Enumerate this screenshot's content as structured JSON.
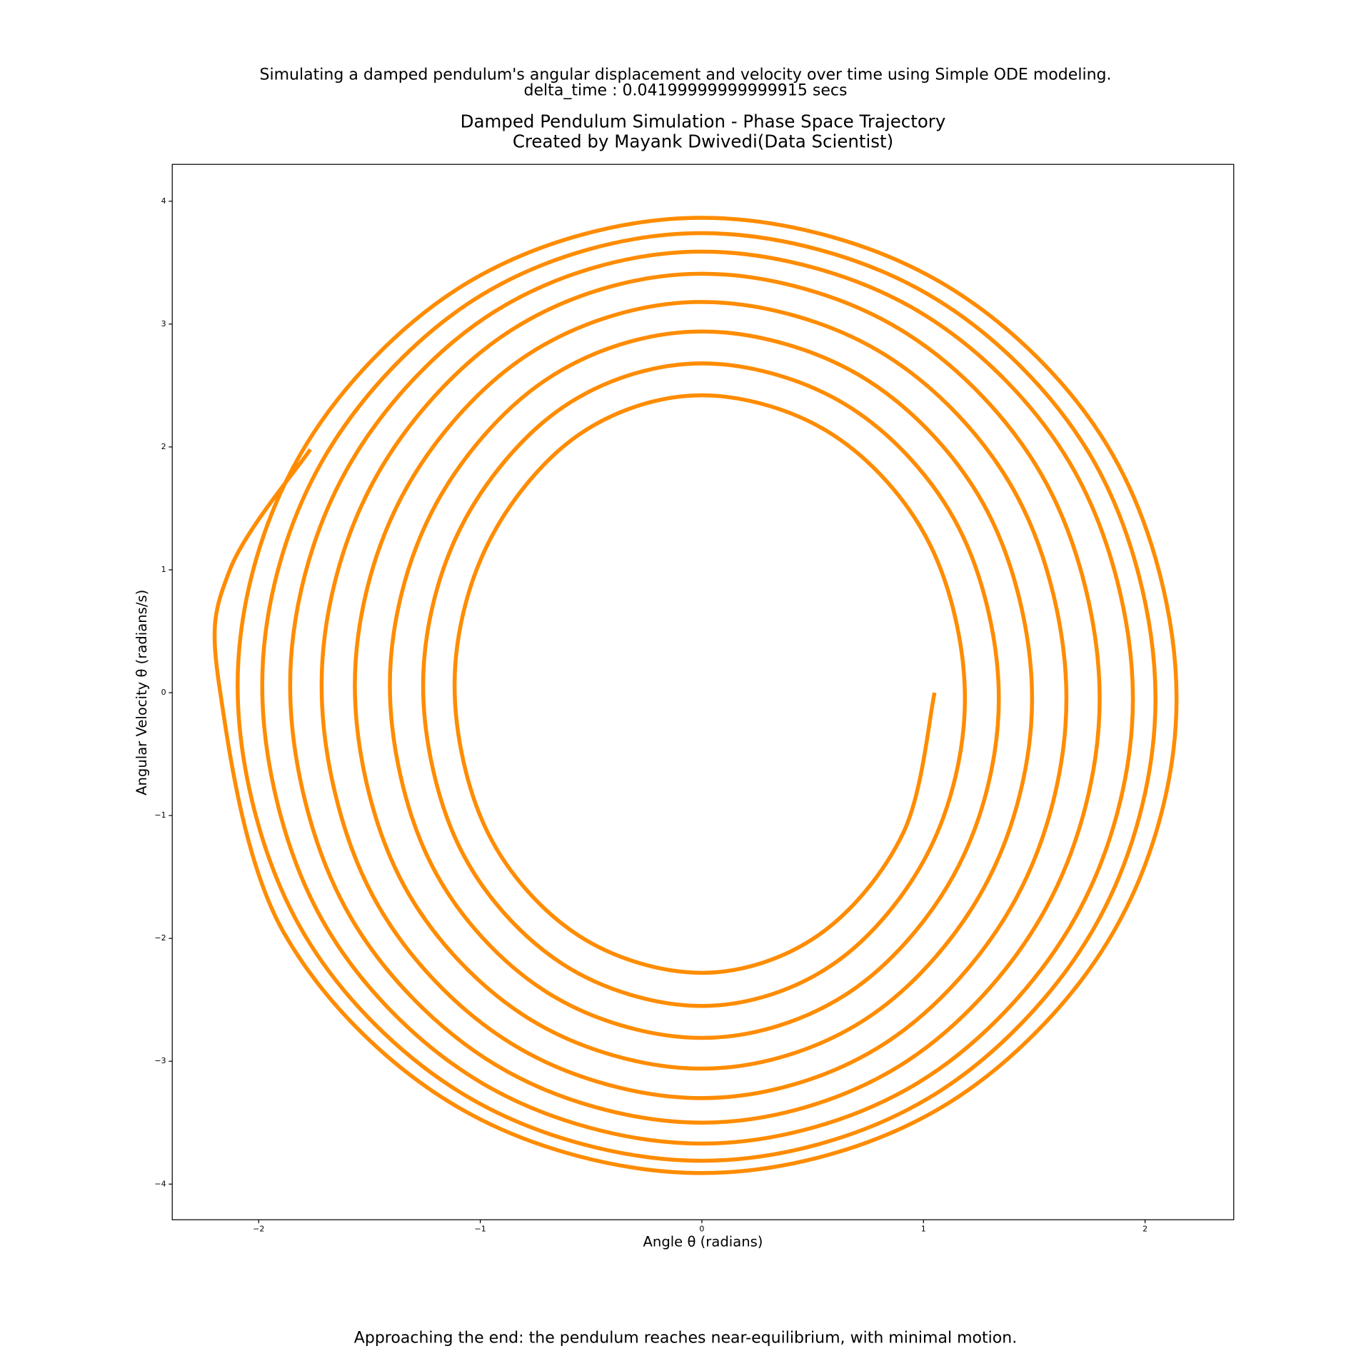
{
  "chart_data": {
    "type": "line",
    "subtitle": [
      "Simulating a damped pendulum's angular displacement and velocity over time using Simple ODE modeling.",
      "delta_time : 0.04199999999999915 secs"
    ],
    "title": [
      "Damped Pendulum Simulation - Phase Space Trajectory",
      "Created by Mayank Dwivedi(Data Scientist)"
    ],
    "x_label": "Angle θ (radians)",
    "y_label": "Angular Velocity θ (radians/s)",
    "annotation": "Approaching the end: the pendulum reaches near-equilibrium, with minimal motion.",
    "annotation_color": "#128a12",
    "xlim": [
      -2.39,
      2.4
    ],
    "ylim": [
      -4.29,
      4.3
    ],
    "xticks": [
      {
        "value": -2,
        "label": "−2"
      },
      {
        "value": -1,
        "label": "−1"
      },
      0,
      1,
      2
    ],
    "yticks": [
      {
        "value": -4,
        "label": "−4"
      },
      {
        "value": -3,
        "label": "−3"
      },
      {
        "value": -2,
        "label": "−2"
      },
      {
        "value": -1,
        "label": "−1"
      },
      0,
      1,
      2,
      3,
      4
    ],
    "grid": false,
    "series": [
      {
        "color": "#ff8c00",
        "x": [
          1.05,
          0.909,
          0.525,
          0,
          -0.558,
          -0.966,
          -1.116,
          -0.966,
          -0.558,
          0,
          0.594,
          1.028,
          1.187,
          1.028,
          0.594,
          0,
          -0.629,
          -1.089,
          -1.258,
          -1.089,
          -0.629,
          0,
          0.67,
          1.16,
          1.34,
          1.16,
          0.67,
          0,
          -0.704,
          -1.219,
          -1.408,
          -1.219,
          -0.704,
          0,
          0.745,
          1.29,
          1.49,
          1.29,
          0.745,
          0,
          -0.783,
          -1.356,
          -1.566,
          -1.356,
          -0.783,
          0,
          0.823,
          1.425,
          1.645,
          1.425,
          0.823,
          0,
          -0.858,
          -1.486,
          -1.716,
          -1.486,
          -0.858,
          0,
          0.898,
          1.554,
          1.795,
          1.554,
          0.898,
          0,
          -0.929,
          -1.609,
          -1.858,
          -1.609,
          -0.929,
          0,
          0.973,
          1.684,
          1.945,
          1.684,
          0.973,
          0,
          -0.992,
          -1.718,
          -1.984,
          -1.718,
          -0.992,
          0,
          1.024,
          1.773,
          2.047,
          1.773,
          1.024,
          0,
          -1.048,
          -1.814,
          -2.095,
          -1.814,
          -1.048,
          0,
          1.071,
          1.855,
          2.142,
          1.855,
          1.071,
          0,
          -1.089,
          -1.886,
          -2.178,
          -2.13,
          -1.767
        ],
        "values": [
          0,
          -1.14,
          -1.975,
          -2.28,
          -1.975,
          -1.14,
          0.06,
          1.21,
          2.096,
          2.42,
          2.096,
          1.21,
          -0.05,
          -1.275,
          -2.208,
          -2.55,
          -2.208,
          -1.275,
          0.06,
          1.34,
          2.321,
          2.68,
          2.321,
          1.34,
          -0.05,
          -1.405,
          -2.433,
          -2.81,
          -2.433,
          -1.405,
          0.06,
          1.47,
          2.546,
          2.94,
          2.546,
          1.47,
          -0.05,
          -1.53,
          -2.65,
          -3.06,
          -2.65,
          -1.53,
          0.06,
          1.59,
          2.754,
          3.18,
          2.754,
          1.59,
          -0.05,
          -1.65,
          -2.858,
          -3.3,
          -2.858,
          -1.65,
          0.06,
          1.705,
          2.953,
          3.41,
          2.953,
          1.705,
          -0.05,
          -1.75,
          -3.031,
          -3.5,
          -3.031,
          -1.75,
          0.06,
          1.795,
          3.109,
          3.59,
          3.109,
          1.795,
          -0.05,
          -1.835,
          -3.178,
          -3.67,
          -3.178,
          -1.835,
          0.06,
          1.87,
          3.239,
          3.74,
          3.239,
          1.87,
          -0.05,
          -1.905,
          -3.299,
          -3.81,
          -3.299,
          -1.905,
          0.06,
          1.933,
          3.347,
          3.865,
          3.347,
          1.933,
          -0.05,
          -1.955,
          -3.386,
          -3.91,
          -3.386,
          -1.955,
          0.06,
          1.0,
          1.98
        ]
      }
    ]
  }
}
